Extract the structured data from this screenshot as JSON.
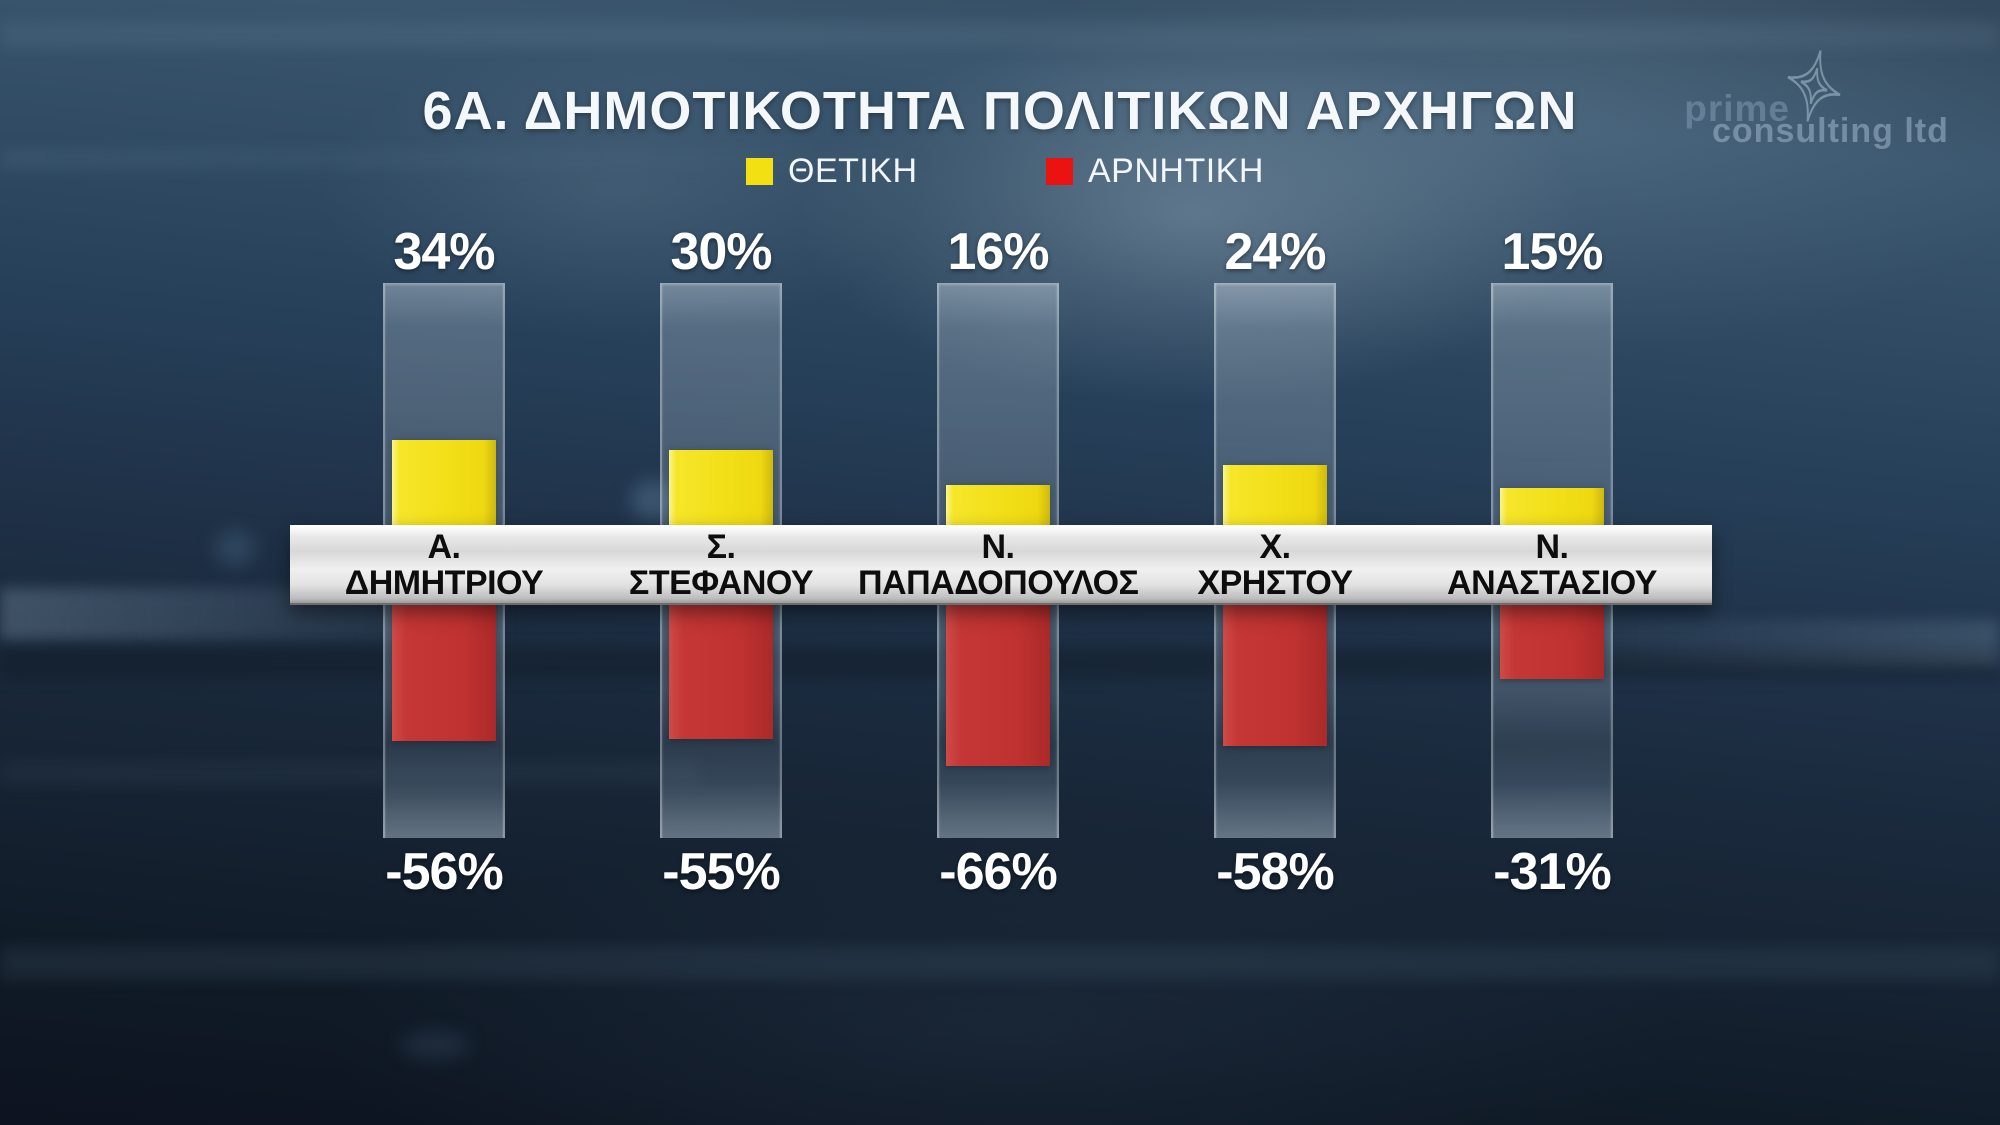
{
  "title": "6Α. ΔΗΜΟΤΙΚΟΤΗΤΑ ΠΟΛΙΤΙΚΩΝ ΑΡΧΗΓΩΝ",
  "legend": {
    "positive_label": "ΘΕΤΙΚΗ",
    "negative_label": "ΑΡΝΗΤΙΚΗ",
    "positive_color": "#f2e013",
    "negative_color": "#ed1212"
  },
  "watermark": {
    "line1": "prime",
    "line2": "consulting ltd",
    "icon": "four-point-star-icon"
  },
  "colors": {
    "positive_bar": "#f2df18",
    "negative_bar": "#c03231",
    "category_band": "#e2e2e2",
    "background_top": "#3a566e",
    "background_bottom": "#0d1320",
    "value_text": "#ffffff",
    "name_text": "#0d0d0d"
  },
  "chart_data": {
    "type": "bar",
    "orientation": "diverging-vertical",
    "title": "6Α. ΔΗΜΟΤΙΚΟΤΗΤΑ ΠΟΛΙΤΙΚΩΝ ΑΡΧΗΓΩΝ",
    "categories": [
      "Α. ΔΗΜΗΤΡΙΟΥ",
      "Σ. ΣΤΕΦΑΝΟΥ",
      "Ν. ΠΑΠΑΔΟΠΟΥΛΟΣ",
      "Χ. ΧΡΗΣΤΟΥ",
      "Ν. ΑΝΑΣΤΑΣΙΟΥ"
    ],
    "series": [
      {
        "name": "ΘΕΤΙΚΗ",
        "color": "#f2df18",
        "values": [
          34,
          30,
          16,
          24,
          15
        ]
      },
      {
        "name": "ΑΡΝΗΤΙΚΗ",
        "color": "#c03231",
        "values": [
          -56,
          -55,
          -66,
          -58,
          -31
        ]
      }
    ],
    "value_suffix": "%",
    "legend_position": "top",
    "axes_shown": false,
    "grid": false
  },
  "columns": [
    {
      "initial": "Α.",
      "surname": "ΔΗΜΗΤΡΙΟΥ",
      "positive_label": "34%",
      "negative_label": "-56%"
    },
    {
      "initial": "Σ.",
      "surname": "ΣΤΕΦΑΝΟΥ",
      "positive_label": "30%",
      "negative_label": "-55%"
    },
    {
      "initial": "Ν.",
      "surname": "ΠΑΠΑΔΟΠΟΥΛΟΣ",
      "positive_label": "16%",
      "negative_label": "-66%"
    },
    {
      "initial": "Χ.",
      "surname": "ΧΡΗΣΤΟΥ",
      "positive_label": "24%",
      "negative_label": "-58%"
    },
    {
      "initial": "Ν.",
      "surname": "ΑΝΑΣΤΑΣΙΟΥ",
      "positive_label": "15%",
      "negative_label": "-31%"
    }
  ]
}
